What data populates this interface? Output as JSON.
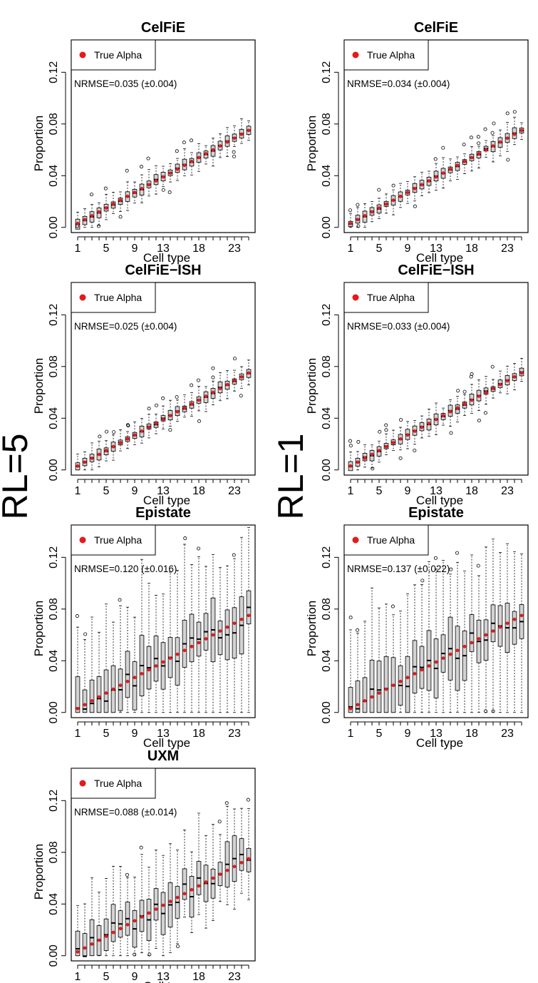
{
  "row_labels": {
    "left": "RL=5",
    "right": "RL=1"
  },
  "colors": {
    "box_fill": "#d3d3d3",
    "true_alpha": "#e41a1c",
    "ink": "#000000"
  },
  "chart_data": [
    {
      "type": "boxplot",
      "title": "CelFiE",
      "xlabel": "Cell type",
      "ylabel": "Proportion",
      "ylim": [
        -0.004,
        0.145
      ],
      "yticks": [
        0,
        0.04,
        0.08,
        0.12
      ],
      "ytick_labels": [
        "0.00",
        "0.04",
        "0.08",
        "0.12"
      ],
      "xticks": [
        1,
        5,
        9,
        13,
        18,
        23
      ],
      "n_cell_types": 25,
      "legend": "True Alpha",
      "annotation": "NRMSE=0.035 (±0.004)",
      "spread": "low"
    },
    {
      "type": "boxplot",
      "title": "CelFiE",
      "xlabel": "Cell type",
      "ylabel": "Proportion",
      "ylim": [
        -0.004,
        0.145
      ],
      "yticks": [
        0,
        0.04,
        0.08,
        0.12
      ],
      "ytick_labels": [
        "0.00",
        "0.04",
        "0.08",
        "0.12"
      ],
      "xticks": [
        1,
        5,
        9,
        13,
        18,
        23
      ],
      "n_cell_types": 25,
      "legend": "True Alpha",
      "annotation": "NRMSE=0.034 (±0.004)",
      "spread": "low"
    },
    {
      "type": "boxplot",
      "title": "CelFiE−ISH",
      "xlabel": "Cell type",
      "ylabel": "Proportion",
      "ylim": [
        -0.004,
        0.145
      ],
      "yticks": [
        0,
        0.04,
        0.08,
        0.12
      ],
      "ytick_labels": [
        "0.00",
        "0.04",
        "0.08",
        "0.12"
      ],
      "xticks": [
        1,
        5,
        9,
        13,
        18,
        23
      ],
      "n_cell_types": 25,
      "legend": "True Alpha",
      "annotation": "NRMSE=0.025 (±0.004)",
      "spread": "low"
    },
    {
      "type": "boxplot",
      "title": "CelFiE−ISH",
      "xlabel": "Cell type",
      "ylabel": "Proportion",
      "ylim": [
        -0.004,
        0.145
      ],
      "yticks": [
        0,
        0.04,
        0.08,
        0.12
      ],
      "ytick_labels": [
        "0.00",
        "0.04",
        "0.08",
        "0.12"
      ],
      "xticks": [
        1,
        5,
        9,
        13,
        18,
        23
      ],
      "n_cell_types": 25,
      "legend": "True Alpha",
      "annotation": "NRMSE=0.033 (±0.004)",
      "spread": "low"
    },
    {
      "type": "boxplot",
      "title": "Epistate",
      "xlabel": "Cell type",
      "ylabel": "Proportion",
      "ylim": [
        -0.004,
        0.145
      ],
      "yticks": [
        0,
        0.04,
        0.08,
        0.12
      ],
      "ytick_labels": [
        "0.00",
        "0.04",
        "0.08",
        "0.12"
      ],
      "xticks": [
        1,
        5,
        9,
        13,
        18,
        23
      ],
      "n_cell_types": 25,
      "legend": "True Alpha",
      "annotation": "NRMSE=0.120 (±0.016)",
      "spread": "high"
    },
    {
      "type": "boxplot",
      "title": "Epistate",
      "xlabel": "Cell type",
      "ylabel": "Proportion",
      "ylim": [
        -0.004,
        0.145
      ],
      "yticks": [
        0,
        0.04,
        0.08,
        0.12
      ],
      "ytick_labels": [
        "0.00",
        "0.04",
        "0.08",
        "0.12"
      ],
      "xticks": [
        1,
        5,
        9,
        13,
        18,
        23
      ],
      "n_cell_types": 25,
      "legend": "True Alpha",
      "annotation": "NRMSE=0.137 (±0.022)",
      "spread": "high"
    },
    {
      "type": "boxplot",
      "title": "UXM",
      "xlabel": "Cell type",
      "ylabel": "Proportion",
      "ylim": [
        -0.004,
        0.145
      ],
      "yticks": [
        0,
        0.04,
        0.08,
        0.12
      ],
      "ytick_labels": [
        "0.00",
        "0.04",
        "0.08",
        "0.12"
      ],
      "xticks": [
        1,
        5,
        9,
        13,
        18,
        23
      ],
      "n_cell_types": 25,
      "legend": "True Alpha",
      "annotation": "NRMSE=0.088 (±0.014)",
      "spread": "medium"
    }
  ]
}
